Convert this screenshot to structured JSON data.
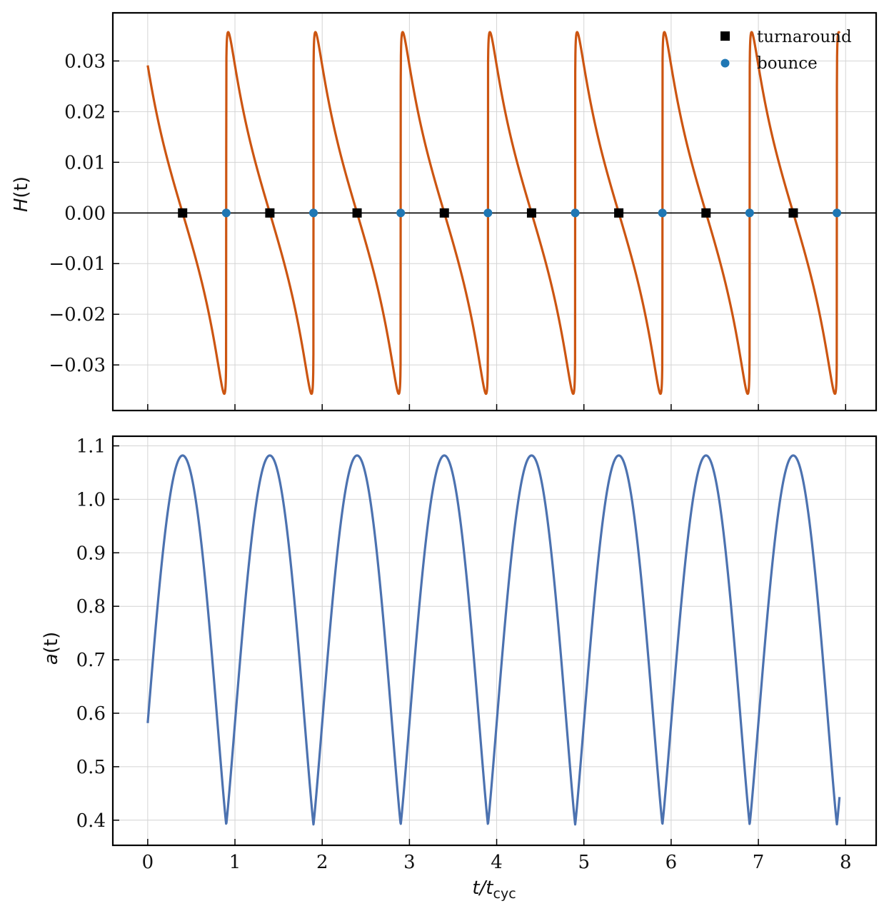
{
  "chart_data": [
    {
      "type": "line",
      "ylabel": "H(t)",
      "xlim": [
        -0.4,
        8.35
      ],
      "ylim": [
        -0.039,
        0.0395
      ],
      "grid": true,
      "zero_line": true,
      "x_ticks": [
        0,
        1,
        2,
        3,
        4,
        5,
        6,
        7,
        8
      ],
      "y_ticks": [
        -0.03,
        -0.02,
        -0.01,
        0.0,
        0.01,
        0.02,
        0.03
      ],
      "y_tick_labels": [
        "−0.03",
        "−0.02",
        "−0.01",
        "0.00",
        "0.01",
        "0.02",
        "0.03"
      ],
      "legend_placement": "top-right",
      "series": [
        {
          "name": "",
          "color": "#cc5511",
          "period": 1.0,
          "t_start": 0.0,
          "t_end": 7.93,
          "peak_value": 0.0357,
          "trough_value": -0.0357,
          "start_value": 0.028,
          "description": "periodic Hubble rate"
        }
      ],
      "markers": [
        {
          "name": "turnaround",
          "symbol": "square",
          "color": "#000000",
          "x": [
            0.4,
            1.4,
            2.4,
            3.4,
            4.4,
            5.4,
            6.4,
            7.4
          ],
          "y": [
            0,
            0,
            0,
            0,
            0,
            0,
            0,
            0
          ]
        },
        {
          "name": "bounce",
          "symbol": "circle",
          "color": "#1f77b4",
          "x": [
            0.9,
            1.9,
            2.9,
            3.9,
            4.9,
            5.9,
            6.9,
            7.9
          ],
          "y": [
            0,
            0,
            0,
            0,
            0,
            0,
            0,
            0
          ]
        }
      ]
    },
    {
      "type": "line",
      "xlabel": "t/t_cyc",
      "ylabel": "a(t)",
      "xlim": [
        -0.4,
        8.35
      ],
      "ylim": [
        0.353,
        1.118
      ],
      "grid": true,
      "x_ticks": [
        0,
        1,
        2,
        3,
        4,
        5,
        6,
        7,
        8
      ],
      "y_ticks": [
        0.4,
        0.5,
        0.6,
        0.7,
        0.8,
        0.9,
        1.0,
        1.1
      ],
      "y_tick_labels": [
        "0.4",
        "0.5",
        "0.6",
        "0.7",
        "0.8",
        "0.9",
        "1.0",
        "1.1"
      ],
      "series": [
        {
          "name": "",
          "color": "#4c72b0",
          "period": 1.0,
          "t_start": 0.0,
          "t_end": 7.93,
          "max_value": 1.082,
          "min_value": 0.392,
          "max_at": [
            0.4,
            1.4,
            2.4,
            3.4,
            4.4,
            5.4,
            6.4,
            7.4
          ],
          "min_at": [
            0.9,
            1.9,
            2.9,
            3.9,
            4.9,
            5.9,
            6.9,
            7.9
          ],
          "start_value": 0.615,
          "end_value": 0.45
        }
      ]
    }
  ],
  "x_tick_labels": [
    "0",
    "1",
    "2",
    "3",
    "4",
    "5",
    "6",
    "7",
    "8"
  ],
  "xlabel_main": "t/t",
  "xlabel_sub": "cyc",
  "ylabel_top_var": "H",
  "ylabel_top_arg": "(t)",
  "ylabel_bottom_var": "a",
  "ylabel_bottom_arg": "(t)",
  "legend": [
    {
      "label": "turnaround",
      "symbol": "square",
      "color": "#000000"
    },
    {
      "label": "bounce",
      "symbol": "circle",
      "color": "#1f77b4"
    }
  ]
}
